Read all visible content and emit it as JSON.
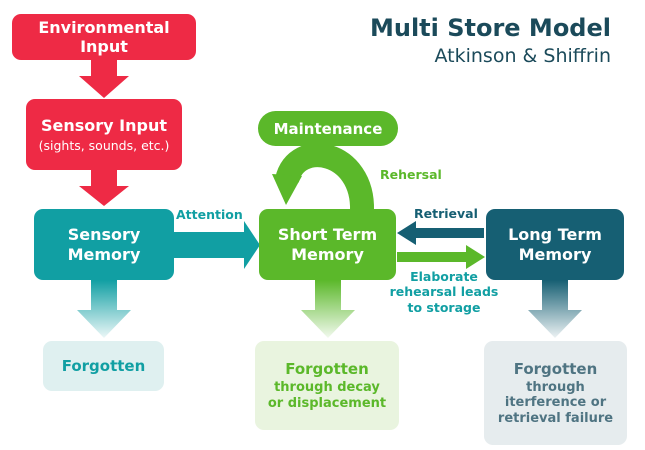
{
  "title": "Multi Store Model",
  "subtitle": "Atkinson & Shiffrin",
  "environmental_input": "Environmental Input",
  "sensory_input": {
    "title": "Sensory Input",
    "detail": "(sights, sounds, etc.)"
  },
  "sensory_memory": {
    "line1": "Sensory",
    "line2": "Memory"
  },
  "short_term_memory": {
    "line1": "Short Term",
    "line2": "Memory"
  },
  "long_term_memory": {
    "line1": "Long Term",
    "line2": "Memory"
  },
  "maintenance": "Maintenance",
  "rehersal_label": "Rehersal",
  "attention_label": "Attention",
  "retrieval_label": "Retrieval",
  "elaborate_label": {
    "line1": "Elaborate",
    "line2": "rehearsal leads",
    "line3": "to storage"
  },
  "forgotten_sensory": {
    "title": "Forgotten"
  },
  "forgotten_stm": {
    "title": "Forgotten",
    "line1": "through decay",
    "line2": "or displacement"
  },
  "forgotten_ltm": {
    "title": "Forgotten",
    "line1": "through",
    "line2": "iterference or",
    "line3": "retrieval failure"
  },
  "colors": {
    "input_red": "#ee2a45",
    "sensory_teal": "#119fa3",
    "short_term_green": "#5bb82a",
    "long_term_navy": "#165f73",
    "forgotten_sensory_bg": "#dff0f0",
    "forgotten_stm_bg": "#e9f4df",
    "forgotten_ltm_bg": "#e6ecee"
  }
}
